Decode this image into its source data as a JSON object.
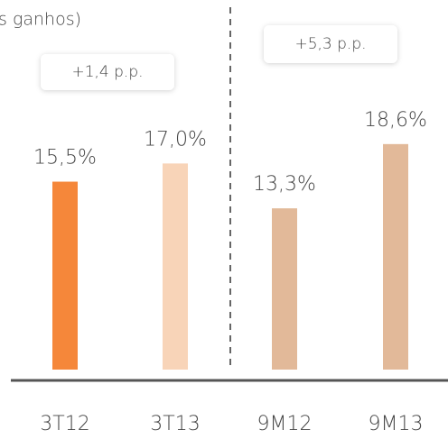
{
  "chart_data": {
    "type": "bar",
    "title": "s ganhos)",
    "categories": [
      "3T12",
      "3T13",
      "9M12",
      "9M13"
    ],
    "values": [
      15.5,
      17.0,
      13.3,
      18.6
    ],
    "value_labels": [
      "15,5%",
      "17,0%",
      "13,3%",
      "18,6%"
    ],
    "colors": [
      "#f5873a",
      "#f8d4b8",
      "#e2b999",
      "#e2b999"
    ],
    "annotations": [
      "+1,4 p.p.",
      "+5,3 p.p."
    ],
    "ylim": [
      0,
      20
    ]
  }
}
